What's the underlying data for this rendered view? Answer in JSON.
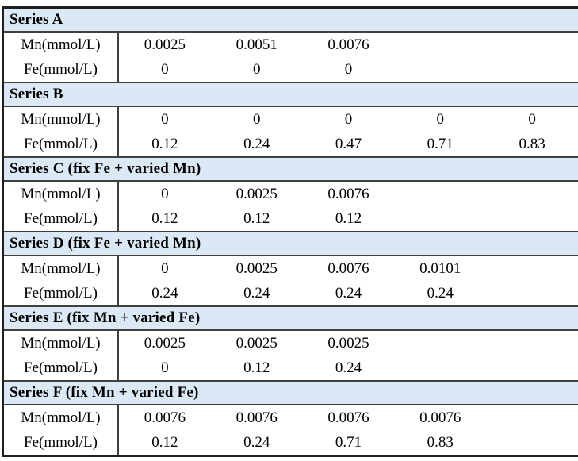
{
  "chart_data": {
    "type": "table",
    "row_labels": [
      "Mn(mmol/L)",
      "Fe(mmol/L)"
    ],
    "sections": [
      {
        "title": "Series A",
        "mn": [
          "0.0025",
          "0.0051",
          "0.0076"
        ],
        "fe": [
          "0",
          "0",
          "0"
        ]
      },
      {
        "title": "Series B",
        "mn": [
          "0",
          "0",
          "0",
          "0",
          "0"
        ],
        "fe": [
          "0.12",
          "0.24",
          "0.47",
          "0.71",
          "0.83"
        ]
      },
      {
        "title": "Series C (fix Fe + varied Mn)",
        "mn": [
          "0",
          "0.0025",
          "0.0076"
        ],
        "fe": [
          "0.12",
          "0.12",
          "0.12"
        ]
      },
      {
        "title": "Series D (fix Fe + varied Mn)",
        "mn": [
          "0",
          "0.0025",
          "0.0076",
          "0.0101"
        ],
        "fe": [
          "0.24",
          "0.24",
          "0.24",
          "0.24"
        ]
      },
      {
        "title": "Series E (fix Mn + varied Fe)",
        "mn": [
          "0.0025",
          "0.0025",
          "0.0025"
        ],
        "fe": [
          "0",
          "0.12",
          "0.24"
        ]
      },
      {
        "title": "Series F (fix Mn + varied Fe)",
        "mn": [
          "0.0076",
          "0.0076",
          "0.0076",
          "0.0076"
        ],
        "fe": [
          "0.12",
          "0.24",
          "0.71",
          "0.83"
        ]
      }
    ]
  },
  "colors": {
    "header_band": "#dbe8f5",
    "grid_line": "#404040",
    "outer_border": "#1f1f1f",
    "text": "#000000"
  }
}
